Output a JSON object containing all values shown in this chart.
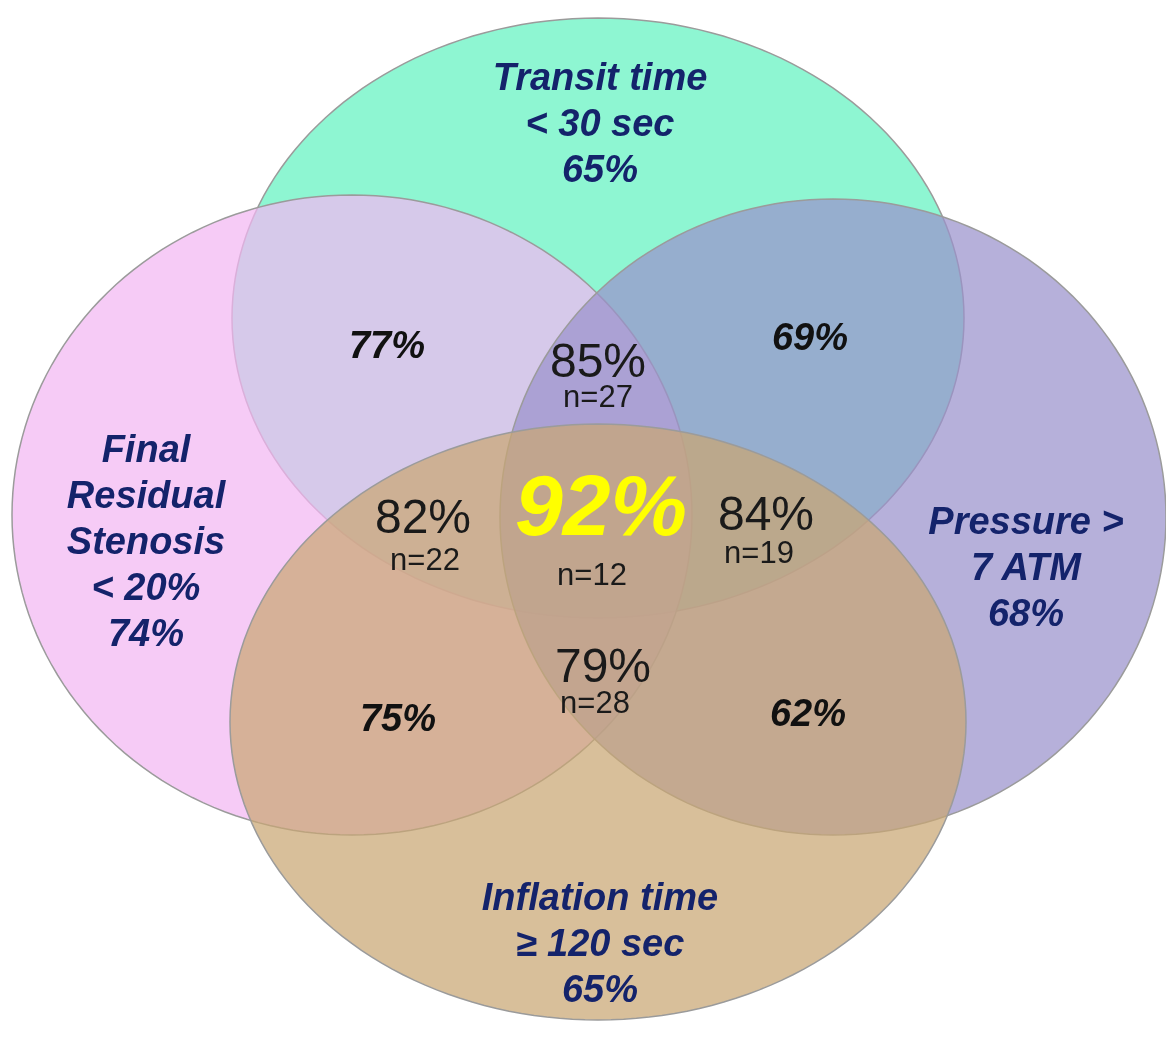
{
  "chart_data": {
    "type": "other",
    "categories": [
      "Transit time\n< 30 sec",
      "Final\nResidual\nStenosis\n< 20%",
      "Pressure >\n7 ATM",
      "Inflation time\n≥ 120 sec"
    ],
    "values": [
      65,
      74,
      68,
      65
    ],
    "value_labels": [
      "65%",
      "74%",
      "68%",
      "65%"
    ],
    "colors": [
      "#8ff6d2",
      "#f6cbf6",
      "#b6b0da",
      "#d8bf9a"
    ],
    "annotations": [
      "77%",
      "69%",
      "75%",
      "62%",
      "85%",
      "n=27",
      "82%",
      "n=22",
      "92%",
      "n=12",
      "84%",
      "n=19",
      "79%",
      "n=28"
    ]
  }
}
